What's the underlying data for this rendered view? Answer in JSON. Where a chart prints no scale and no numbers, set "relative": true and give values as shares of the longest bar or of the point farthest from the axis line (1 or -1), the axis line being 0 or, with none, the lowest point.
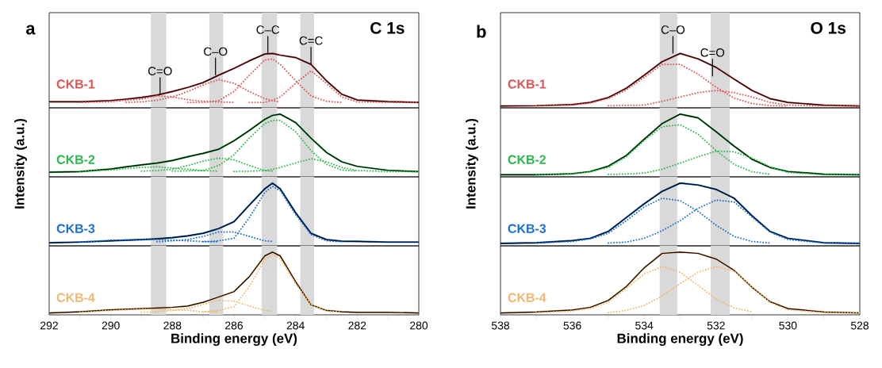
{
  "chart_data": [
    {
      "type": "line",
      "relative": true,
      "title": "a",
      "ylabel": "Intensity (a.u.)",
      "tick_labels": false,
      "xlim": [
        292,
        280
      ],
      "x": [
        292,
        291,
        290,
        289.5,
        289,
        288.5,
        288,
        287.5,
        287,
        286.5,
        286,
        285.5,
        285,
        284.75,
        284.5,
        284,
        283.5,
        283,
        282.5,
        282,
        281,
        280
      ],
      "bands": [
        {
          "axis": "x",
          "from": 288.7,
          "to": 288.2,
          "color": "#d9d9d9"
        },
        {
          "axis": "x",
          "from": 286.8,
          "to": 286.35,
          "color": "#d9d9d9"
        },
        {
          "axis": "x",
          "from": 285.1,
          "to": 284.6,
          "color": "#d9d9d9"
        },
        {
          "axis": "x",
          "from": 283.85,
          "to": 283.4,
          "color": "#d9d9d9"
        }
      ],
      "annotations": [
        {
          "text": "C=O",
          "x": 288.4,
          "y": 0.24
        },
        {
          "text": "C–O",
          "x": 286.6,
          "y": 0.6
        },
        {
          "text": "C–C",
          "x": 284.9,
          "y": 1.0
        },
        {
          "text": "C=C",
          "x": 283.5,
          "y": 0.8
        },
        "C 1s"
      ],
      "series": [
        {
          "name": "CKB-1",
          "color": "#e05555",
          "line_style": "solid",
          "values": [
            0.11,
            0.11,
            0.135,
            0.16,
            0.19,
            0.235,
            0.3,
            0.375,
            0.465,
            0.6,
            0.725,
            0.865,
            0.99,
            1.0,
            0.97,
            0.925,
            0.8,
            0.5,
            0.25,
            0.145,
            0.115,
            0.1
          ]
        },
        {
          "color": "#000000",
          "line_style": "solid",
          "values": [
            0.11,
            0.11,
            0.135,
            0.16,
            0.19,
            0.235,
            0.3,
            0.375,
            0.465,
            0.6,
            0.725,
            0.865,
            0.99,
            1.0,
            0.97,
            0.925,
            0.8,
            0.5,
            0.25,
            0.145,
            0.115,
            0.1
          ]
        },
        {
          "color": "#e05555",
          "line_style": "dotted",
          "values": [
            null,
            0.1,
            0.11,
            0.14,
            0.16,
            0.22,
            0.2,
            0.15,
            0.12,
            0.11,
            0.1,
            null,
            null,
            null,
            null,
            null,
            null,
            null,
            null,
            null,
            null,
            null
          ]
        },
        {
          "color": "#e05555",
          "line_style": "dotted",
          "values": [
            null,
            null,
            null,
            0.1,
            0.11,
            0.14,
            0.2,
            0.3,
            0.42,
            0.52,
            0.45,
            0.3,
            0.17,
            0.13,
            0.11,
            null,
            null,
            null,
            null,
            null,
            null,
            null
          ]
        },
        {
          "color": "#e05555",
          "line_style": "dotted",
          "values": [
            null,
            null,
            null,
            null,
            null,
            null,
            null,
            0.1,
            0.1,
            0.13,
            0.3,
            0.6,
            0.88,
            0.9,
            0.8,
            0.5,
            0.22,
            0.12,
            0.1,
            null,
            null,
            null
          ]
        },
        {
          "color": "#e05555",
          "line_style": "dotted",
          "values": [
            null,
            null,
            null,
            null,
            null,
            null,
            null,
            null,
            null,
            null,
            null,
            0.1,
            0.1,
            0.14,
            0.2,
            0.45,
            0.68,
            0.45,
            0.2,
            0.11,
            0.1,
            0.1
          ]
        }
      ]
    },
    {
      "type": "line",
      "relative": true,
      "tick_labels": false,
      "xlim": [
        292,
        280
      ],
      "x": [
        292,
        291,
        290,
        289.5,
        289,
        288.5,
        288,
        287.5,
        287,
        286.5,
        286,
        285.5,
        285,
        284.75,
        284.5,
        284,
        283.5,
        283,
        282.5,
        282,
        281,
        280
      ],
      "bands": [
        {
          "axis": "x",
          "from": 288.7,
          "to": 288.2,
          "color": "#d9d9d9"
        },
        {
          "axis": "x",
          "from": 286.8,
          "to": 286.35,
          "color": "#d9d9d9"
        },
        {
          "axis": "x",
          "from": 285.1,
          "to": 284.6,
          "color": "#d9d9d9"
        },
        {
          "axis": "x",
          "from": 283.85,
          "to": 283.4,
          "color": "#d9d9d9"
        }
      ],
      "series": [
        {
          "name": "CKB-2",
          "color": "#2cb84a",
          "line_style": "solid",
          "values": [
            0.075,
            0.083,
            0.125,
            0.16,
            0.19,
            0.22,
            0.26,
            0.32,
            0.375,
            0.44,
            0.575,
            0.74,
            0.917,
            0.98,
            1.0,
            0.867,
            0.617,
            0.39,
            0.24,
            0.167,
            0.104,
            0.083
          ]
        },
        {
          "color": "#000000",
          "line_style": "solid",
          "values": [
            0.075,
            0.083,
            0.125,
            0.16,
            0.19,
            0.22,
            0.26,
            0.32,
            0.375,
            0.44,
            0.575,
            0.74,
            0.917,
            0.98,
            1.0,
            0.867,
            0.617,
            0.39,
            0.24,
            0.167,
            0.104,
            0.083
          ]
        },
        {
          "color": "#2cb84a",
          "line_style": "dotted",
          "values": [
            null,
            0.083,
            0.11,
            0.13,
            0.15,
            0.16,
            0.14,
            0.12,
            0.1,
            0.09,
            null,
            null,
            null,
            null,
            null,
            null,
            null,
            null,
            null,
            null,
            null,
            null
          ]
        },
        {
          "color": "#2cb84a",
          "line_style": "dotted",
          "values": [
            null,
            null,
            null,
            null,
            0.09,
            0.1,
            0.12,
            0.18,
            0.25,
            0.3,
            0.27,
            0.18,
            0.1,
            0.09,
            null,
            null,
            null,
            null,
            null,
            null,
            null,
            null
          ]
        },
        {
          "color": "#2cb84a",
          "line_style": "dotted",
          "values": [
            null,
            null,
            null,
            null,
            null,
            null,
            0.09,
            0.095,
            0.1,
            0.18,
            0.35,
            0.62,
            0.85,
            0.9,
            0.9,
            0.72,
            0.42,
            0.2,
            0.11,
            0.09,
            null,
            null
          ]
        },
        {
          "color": "#2cb84a",
          "line_style": "dotted",
          "values": [
            null,
            null,
            null,
            null,
            null,
            null,
            null,
            null,
            null,
            null,
            0.085,
            0.09,
            0.1,
            0.12,
            0.15,
            0.22,
            0.29,
            0.24,
            0.15,
            0.1,
            0.085,
            0.083
          ]
        }
      ]
    },
    {
      "type": "line",
      "relative": true,
      "tick_labels": false,
      "xlim": [
        292,
        280
      ],
      "x": [
        292,
        291,
        290,
        289.5,
        289,
        288.5,
        288,
        287.5,
        287,
        286.5,
        286,
        285.5,
        285,
        284.75,
        284.5,
        284,
        283.5,
        283,
        282.5,
        282,
        281,
        280
      ],
      "bands": [
        {
          "axis": "x",
          "from": 288.7,
          "to": 288.2,
          "color": "#d9d9d9"
        },
        {
          "axis": "x",
          "from": 286.8,
          "to": 286.35,
          "color": "#d9d9d9"
        },
        {
          "axis": "x",
          "from": 285.1,
          "to": 284.6,
          "color": "#d9d9d9"
        },
        {
          "axis": "x",
          "from": 283.85,
          "to": 283.4,
          "color": "#d9d9d9"
        }
      ],
      "series": [
        {
          "name": "CKB-3",
          "color": "#1a6fd4",
          "line_style": "solid",
          "values": [
            0.05,
            0.06,
            0.08,
            0.09,
            0.1,
            0.113,
            0.13,
            0.16,
            0.2,
            0.275,
            0.385,
            0.65,
            0.91,
            1.0,
            0.91,
            0.53,
            0.2,
            0.1,
            0.073,
            0.07,
            0.06,
            0.06
          ]
        },
        {
          "color": "#000000",
          "line_style": "solid",
          "values": [
            0.05,
            0.06,
            0.08,
            0.09,
            0.1,
            0.113,
            0.13,
            0.16,
            0.2,
            0.275,
            0.385,
            0.65,
            0.91,
            1.0,
            0.91,
            0.53,
            0.2,
            0.1,
            0.073,
            0.07,
            0.06,
            0.06
          ]
        },
        {
          "color": "#1a6fd4",
          "line_style": "dotted",
          "values": [
            null,
            0.06,
            0.09,
            0.095,
            0.1,
            0.1,
            0.09,
            0.08,
            0.07,
            0.065,
            null,
            null,
            null,
            null,
            null,
            null,
            null,
            null,
            null,
            null,
            null,
            null
          ]
        },
        {
          "color": "#1a6fd4",
          "line_style": "dotted",
          "values": [
            null,
            null,
            null,
            null,
            null,
            0.065,
            0.08,
            0.1,
            0.15,
            0.22,
            0.22,
            0.15,
            0.08,
            0.07,
            null,
            null,
            null,
            null,
            null,
            null,
            null,
            null
          ]
        },
        {
          "color": "#1a6fd4",
          "line_style": "dotted",
          "values": [
            null,
            null,
            null,
            null,
            null,
            null,
            null,
            null,
            0.065,
            0.08,
            0.12,
            0.45,
            0.85,
            0.95,
            0.88,
            0.5,
            0.18,
            0.08,
            0.065,
            null,
            null,
            null
          ]
        }
      ]
    },
    {
      "type": "line",
      "relative": true,
      "xlabel": "Binding energy (eV)",
      "tick_labels": "x",
      "xlim": [
        292,
        280
      ],
      "xticks": [
        292,
        {
          "value": 291,
          "label": null
        },
        290,
        {
          "value": 289,
          "label": null
        },
        288,
        {
          "value": 287,
          "label": null
        },
        286,
        {
          "value": 285,
          "label": null
        },
        284,
        {
          "value": 283,
          "label": null
        },
        282,
        {
          "value": 281,
          "label": null
        },
        280
      ],
      "x": [
        292,
        291,
        290,
        289.5,
        289,
        288.5,
        288,
        287.5,
        287,
        286.5,
        286,
        285.5,
        285,
        284.75,
        284.5,
        284,
        283.5,
        283,
        282.5,
        282,
        281,
        280
      ],
      "bands": [
        {
          "axis": "x",
          "from": 288.7,
          "to": 288.2,
          "color": "#d9d9d9"
        },
        {
          "axis": "x",
          "from": 286.8,
          "to": 286.35,
          "color": "#d9d9d9"
        },
        {
          "axis": "x",
          "from": 285.1,
          "to": 284.6,
          "color": "#d9d9d9"
        },
        {
          "axis": "x",
          "from": 283.85,
          "to": 283.4,
          "color": "#d9d9d9"
        }
      ],
      "series": [
        {
          "name": "CKB-4",
          "color": "#f0b872",
          "line_style": "solid",
          "values": [
            0.03,
            0.05,
            0.08,
            0.09,
            0.1,
            0.11,
            0.12,
            0.14,
            0.2,
            0.285,
            0.37,
            0.61,
            0.94,
            1.0,
            0.94,
            0.53,
            0.16,
            0.07,
            0.05,
            0.04,
            0.04,
            0.03
          ]
        },
        {
          "color": "#000000",
          "line_style": "solid",
          "values": [
            0.03,
            0.05,
            0.08,
            0.09,
            0.1,
            0.11,
            0.12,
            0.14,
            0.2,
            0.285,
            0.37,
            0.61,
            0.94,
            1.0,
            0.94,
            0.53,
            0.16,
            0.07,
            0.05,
            0.04,
            0.04,
            0.03
          ]
        },
        {
          "color": "#f0b872",
          "line_style": "dotted",
          "values": [
            null,
            0.04,
            0.07,
            0.08,
            0.09,
            0.09,
            0.08,
            0.07,
            0.05,
            0.045,
            null,
            null,
            null,
            null,
            null,
            null,
            null,
            null,
            null,
            null,
            null,
            null
          ]
        },
        {
          "color": "#f0b872",
          "line_style": "dotted",
          "values": [
            null,
            null,
            null,
            null,
            0.04,
            0.05,
            0.07,
            0.1,
            0.17,
            0.23,
            0.22,
            0.14,
            0.07,
            0.055,
            null,
            null,
            null,
            null,
            null,
            null,
            null,
            null
          ]
        },
        {
          "color": "#f0b872",
          "line_style": "dotted",
          "values": [
            null,
            null,
            null,
            null,
            null,
            null,
            null,
            null,
            0.045,
            0.07,
            0.13,
            0.45,
            0.88,
            0.96,
            0.9,
            0.5,
            0.16,
            0.06,
            0.045,
            null,
            null,
            null
          ]
        }
      ]
    },
    {
      "type": "line",
      "relative": true,
      "title": "b",
      "ylabel": "Intensity (a.u.)",
      "tick_labels": false,
      "xlim": [
        538,
        528
      ],
      "x": [
        538,
        537,
        536,
        535.5,
        535,
        534.5,
        534,
        533.5,
        533,
        532.5,
        532,
        531.5,
        531,
        530.5,
        530,
        529,
        528
      ],
      "bands": [
        {
          "axis": "x",
          "from": 533.57,
          "to": 533.08,
          "color": "#d9d9d9"
        },
        {
          "axis": "x",
          "from": 532.15,
          "to": 531.62,
          "color": "#d9d9d9"
        }
      ],
      "annotations": [
        {
          "text": "C–O",
          "x": 533.2,
          "y": 1.0
        },
        {
          "text": "C=O",
          "x": 532.1,
          "y": 0.58
        },
        "O 1s"
      ],
      "series": [
        {
          "name": "CKB-1",
          "color": "#e05555",
          "line_style": "solid",
          "values": [
            0.035,
            0.04,
            0.06,
            0.1,
            0.19,
            0.36,
            0.6,
            0.85,
            1.0,
            0.9,
            0.745,
            0.53,
            0.32,
            0.17,
            0.1,
            0.05,
            0.035
          ]
        },
        {
          "color": "#000000",
          "line_style": "solid",
          "values": [
            0.035,
            0.04,
            0.06,
            0.1,
            0.19,
            0.36,
            0.6,
            0.85,
            1.0,
            0.9,
            0.745,
            0.53,
            0.32,
            0.17,
            0.1,
            0.05,
            0.035
          ]
        },
        {
          "color": "#e05555",
          "line_style": "dotted",
          "values": [
            null,
            0.035,
            0.05,
            0.09,
            0.17,
            0.33,
            0.56,
            0.8,
            0.8,
            0.62,
            0.38,
            0.18,
            0.08,
            0.04,
            0.035,
            null,
            null
          ]
        },
        {
          "color": "#e05555",
          "line_style": "dotted",
          "values": [
            null,
            null,
            null,
            null,
            0.04,
            0.045,
            0.05,
            0.12,
            0.2,
            0.28,
            0.32,
            0.28,
            0.2,
            0.1,
            0.05,
            0.035,
            0.035
          ]
        }
      ]
    },
    {
      "type": "line",
      "relative": true,
      "tick_labels": false,
      "xlim": [
        538,
        528
      ],
      "x": [
        538,
        537,
        536,
        535.5,
        535,
        534.5,
        534,
        533.5,
        533,
        532.5,
        532,
        531.5,
        531,
        530.5,
        530,
        529,
        528
      ],
      "bands": [
        {
          "axis": "x",
          "from": 533.57,
          "to": 533.08,
          "color": "#d9d9d9"
        },
        {
          "axis": "x",
          "from": 532.15,
          "to": 531.62,
          "color": "#d9d9d9"
        }
      ],
      "series": [
        {
          "name": "CKB-2",
          "color": "#2cb84a",
          "line_style": "solid",
          "values": [
            0.034,
            0.034,
            0.05,
            0.085,
            0.17,
            0.34,
            0.6,
            0.85,
            1.0,
            0.94,
            0.72,
            0.49,
            0.28,
            0.15,
            0.085,
            0.043,
            0.034
          ]
        },
        {
          "color": "#000000",
          "line_style": "solid",
          "values": [
            0.034,
            0.034,
            0.05,
            0.085,
            0.17,
            0.34,
            0.6,
            0.85,
            1.0,
            0.94,
            0.72,
            0.49,
            0.28,
            0.15,
            0.085,
            0.043,
            0.034
          ]
        },
        {
          "color": "#2cb84a",
          "line_style": "dotted",
          "values": [
            null,
            0.034,
            0.045,
            0.08,
            0.15,
            0.32,
            0.58,
            0.8,
            0.83,
            0.68,
            0.42,
            0.2,
            0.08,
            0.04,
            null,
            null,
            null
          ]
        },
        {
          "color": "#2cb84a",
          "line_style": "dotted",
          "values": [
            null,
            null,
            null,
            null,
            0.04,
            0.045,
            0.06,
            0.12,
            0.22,
            0.32,
            0.41,
            0.4,
            0.3,
            0.16,
            0.07,
            0.035,
            0.034
          ]
        }
      ]
    },
    {
      "type": "line",
      "relative": true,
      "tick_labels": false,
      "xlim": [
        538,
        528
      ],
      "x": [
        538,
        537,
        536,
        535.5,
        535,
        534.5,
        534,
        533.5,
        533,
        532.5,
        532,
        531.5,
        531,
        530.5,
        530,
        529,
        528
      ],
      "bands": [
        {
          "axis": "x",
          "from": 533.57,
          "to": 533.08,
          "color": "#d9d9d9"
        },
        {
          "axis": "x",
          "from": 532.15,
          "to": 531.62,
          "color": "#d9d9d9"
        }
      ],
      "series": [
        {
          "name": "CKB-3",
          "color": "#1a6fd4",
          "line_style": "solid",
          "values": [
            0.04,
            0.05,
            0.083,
            0.12,
            0.23,
            0.45,
            0.67,
            0.87,
            1.0,
            0.97,
            0.9,
            0.76,
            0.48,
            0.23,
            0.12,
            0.05,
            0.04
          ]
        },
        {
          "color": "#000000",
          "line_style": "solid",
          "values": [
            0.04,
            0.05,
            0.083,
            0.12,
            0.23,
            0.45,
            0.67,
            0.87,
            1.0,
            0.97,
            0.9,
            0.76,
            0.48,
            0.23,
            0.12,
            0.05,
            0.04
          ]
        },
        {
          "color": "#1a6fd4",
          "line_style": "dotted",
          "values": [
            null,
            0.045,
            0.07,
            0.11,
            0.2,
            0.4,
            0.62,
            0.76,
            0.72,
            0.55,
            0.33,
            0.15,
            0.07,
            0.045,
            null,
            null,
            null
          ]
        },
        {
          "color": "#1a6fd4",
          "line_style": "dotted",
          "values": [
            null,
            null,
            null,
            null,
            0.045,
            0.06,
            0.12,
            0.24,
            0.4,
            0.6,
            0.73,
            0.7,
            0.46,
            0.22,
            0.1,
            0.045,
            0.04
          ]
        }
      ]
    },
    {
      "type": "line",
      "relative": true,
      "xlabel": "Binding energy (eV)",
      "tick_labels": "x",
      "xlim": [
        538,
        528
      ],
      "xticks": [
        538,
        {
          "value": 537,
          "label": null
        },
        536,
        {
          "value": 535,
          "label": null
        },
        534,
        {
          "value": 533,
          "label": null
        },
        532,
        {
          "value": 531,
          "label": null
        },
        530,
        {
          "value": 529,
          "label": null
        },
        528
      ],
      "x": [
        538,
        537,
        536,
        535.5,
        535,
        534.5,
        534,
        533.5,
        533,
        532.5,
        532,
        531.5,
        531,
        530.5,
        530,
        529,
        528
      ],
      "bands": [
        {
          "axis": "x",
          "from": 533.57,
          "to": 533.08,
          "color": "#d9d9d9"
        },
        {
          "axis": "x",
          "from": 532.15,
          "to": 531.62,
          "color": "#d9d9d9"
        }
      ],
      "series": [
        {
          "name": "CKB-4",
          "color": "#f0b872",
          "line_style": "solid",
          "values": [
            0.03,
            0.045,
            0.077,
            0.12,
            0.23,
            0.45,
            0.75,
            0.98,
            1.0,
            0.98,
            0.89,
            0.71,
            0.44,
            0.21,
            0.1,
            0.045,
            0.03
          ]
        },
        {
          "color": "#000000",
          "line_style": "solid",
          "values": [
            0.03,
            0.045,
            0.077,
            0.12,
            0.23,
            0.45,
            0.75,
            0.98,
            1.0,
            0.98,
            0.89,
            0.71,
            0.44,
            0.21,
            0.1,
            0.045,
            0.03
          ]
        },
        {
          "color": "#f0b872",
          "line_style": "dotted",
          "values": [
            null,
            0.035,
            0.06,
            0.1,
            0.2,
            0.42,
            0.65,
            0.77,
            0.68,
            0.47,
            0.25,
            0.11,
            0.05,
            null,
            null,
            null,
            null
          ]
        },
        {
          "color": "#f0b872",
          "line_style": "dotted",
          "values": [
            null,
            null,
            null,
            null,
            0.035,
            0.07,
            0.15,
            0.3,
            0.5,
            0.68,
            0.77,
            0.7,
            0.45,
            0.2,
            0.08,
            0.035,
            0.03
          ]
        }
      ]
    }
  ]
}
